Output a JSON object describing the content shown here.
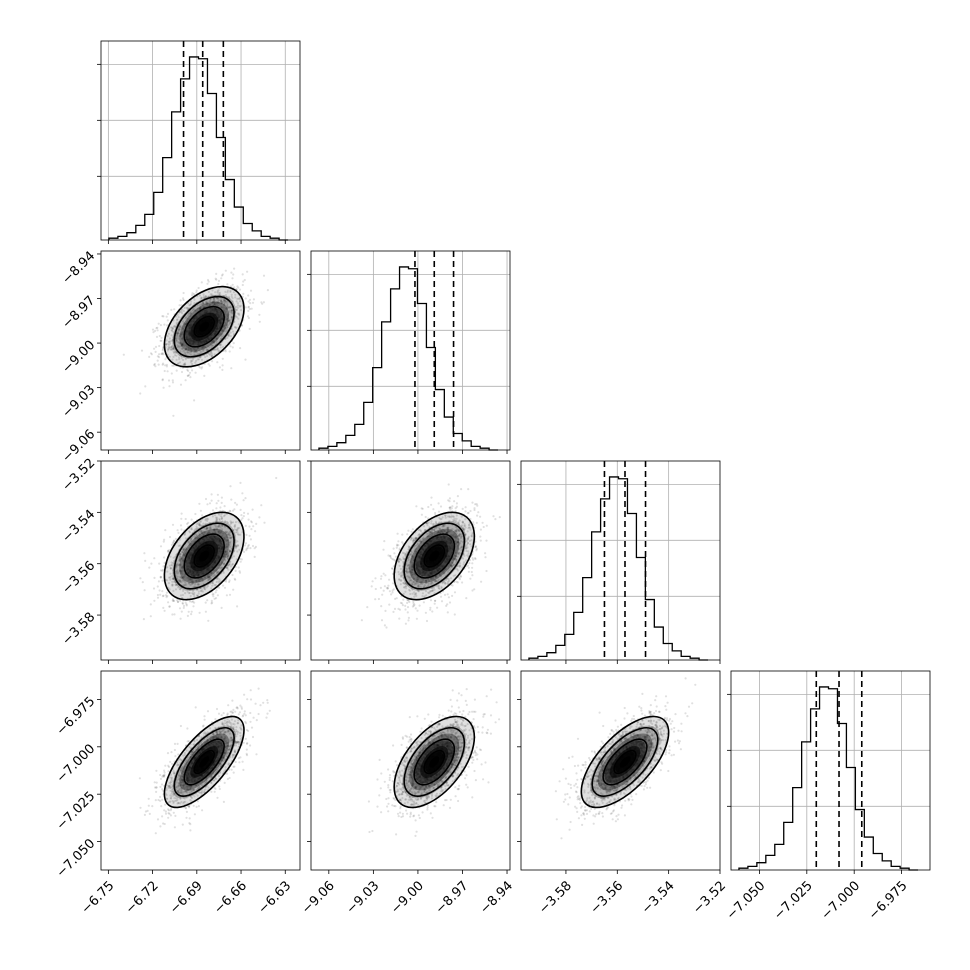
{
  "chart_data": {
    "type": "corner",
    "n_params": 4,
    "quantiles": [
      0.16,
      0.5,
      0.84
    ],
    "params": [
      {
        "id": "p0",
        "mean": -6.685,
        "std": 0.0135,
        "range": [
          -6.755,
          -6.62
        ],
        "ticks": [
          -6.75,
          -6.72,
          -6.69,
          -6.66,
          -6.63
        ],
        "tick_labels": [
          "−6.75",
          "−6.72",
          "−6.69",
          "−6.66",
          "−6.63"
        ],
        "quantile_values": [
          -6.699,
          -6.686,
          -6.672
        ],
        "hist": [
          1,
          2,
          4,
          8,
          14,
          26,
          45,
          70,
          88,
          100,
          99,
          80,
          56,
          33,
          18,
          9,
          5,
          2,
          1,
          0
        ]
      },
      {
        "id": "p1",
        "mean": -8.989,
        "std": 0.0135,
        "range": [
          -9.072,
          -8.938
        ],
        "ticks": [
          -9.06,
          -9.03,
          -9.0,
          -8.97,
          -8.94
        ],
        "tick_labels": [
          "−9.06",
          "−9.03",
          "−9.00",
          "−8.97",
          "−8.94"
        ],
        "quantile_values": [
          -9.002,
          -8.989,
          -8.976
        ],
        "hist": [
          1,
          2,
          4,
          8,
          14,
          26,
          45,
          70,
          88,
          100,
          99,
          80,
          56,
          33,
          18,
          9,
          5,
          2,
          1,
          0
        ]
      },
      {
        "id": "p2",
        "mean": -3.557,
        "std": 0.0085,
        "range": [
          -3.5975,
          -3.52
        ],
        "ticks": [
          -3.58,
          -3.56,
          -3.54,
          -3.52
        ],
        "tick_labels": [
          "−3.58",
          "−3.56",
          "−3.54",
          "−3.52"
        ],
        "quantile_values": [
          -3.565,
          -3.557,
          -3.549
        ],
        "hist": [
          1,
          2,
          4,
          8,
          14,
          26,
          45,
          70,
          88,
          100,
          99,
          80,
          56,
          33,
          18,
          9,
          5,
          2,
          1,
          0
        ]
      },
      {
        "id": "p3",
        "mean": -7.008,
        "std": 0.012,
        "range": [
          -7.065,
          -6.96
        ],
        "ticks": [
          -7.05,
          -7.025,
          -7.0,
          -6.975
        ],
        "tick_labels": [
          "−7.050",
          "−7.025",
          "−7.000",
          "−6.975"
        ],
        "quantile_values": [
          -7.02,
          -7.008,
          -6.996
        ],
        "hist": [
          1,
          2,
          4,
          8,
          14,
          26,
          45,
          70,
          88,
          100,
          99,
          80,
          56,
          33,
          18,
          9,
          5,
          2,
          1,
          0
        ]
      }
    ],
    "correlations": [
      {
        "x": "p0",
        "y": "p1",
        "rho": 0.45
      },
      {
        "x": "p0",
        "y": "p2",
        "rho": 0.45
      },
      {
        "x": "p1",
        "y": "p2",
        "rho": 0.45
      },
      {
        "x": "p0",
        "y": "p3",
        "rho": 0.7
      },
      {
        "x": "p1",
        "y": "p3",
        "rho": 0.55
      },
      {
        "x": "p2",
        "y": "p3",
        "rho": 0.65
      }
    ],
    "contour_levels_sigma": [
      0.5,
      1.0,
      1.5,
      2.0
    ],
    "colors": {
      "line": "#000000",
      "grid": "#b0b0b0",
      "points": "#000000",
      "density": "#000000"
    }
  }
}
